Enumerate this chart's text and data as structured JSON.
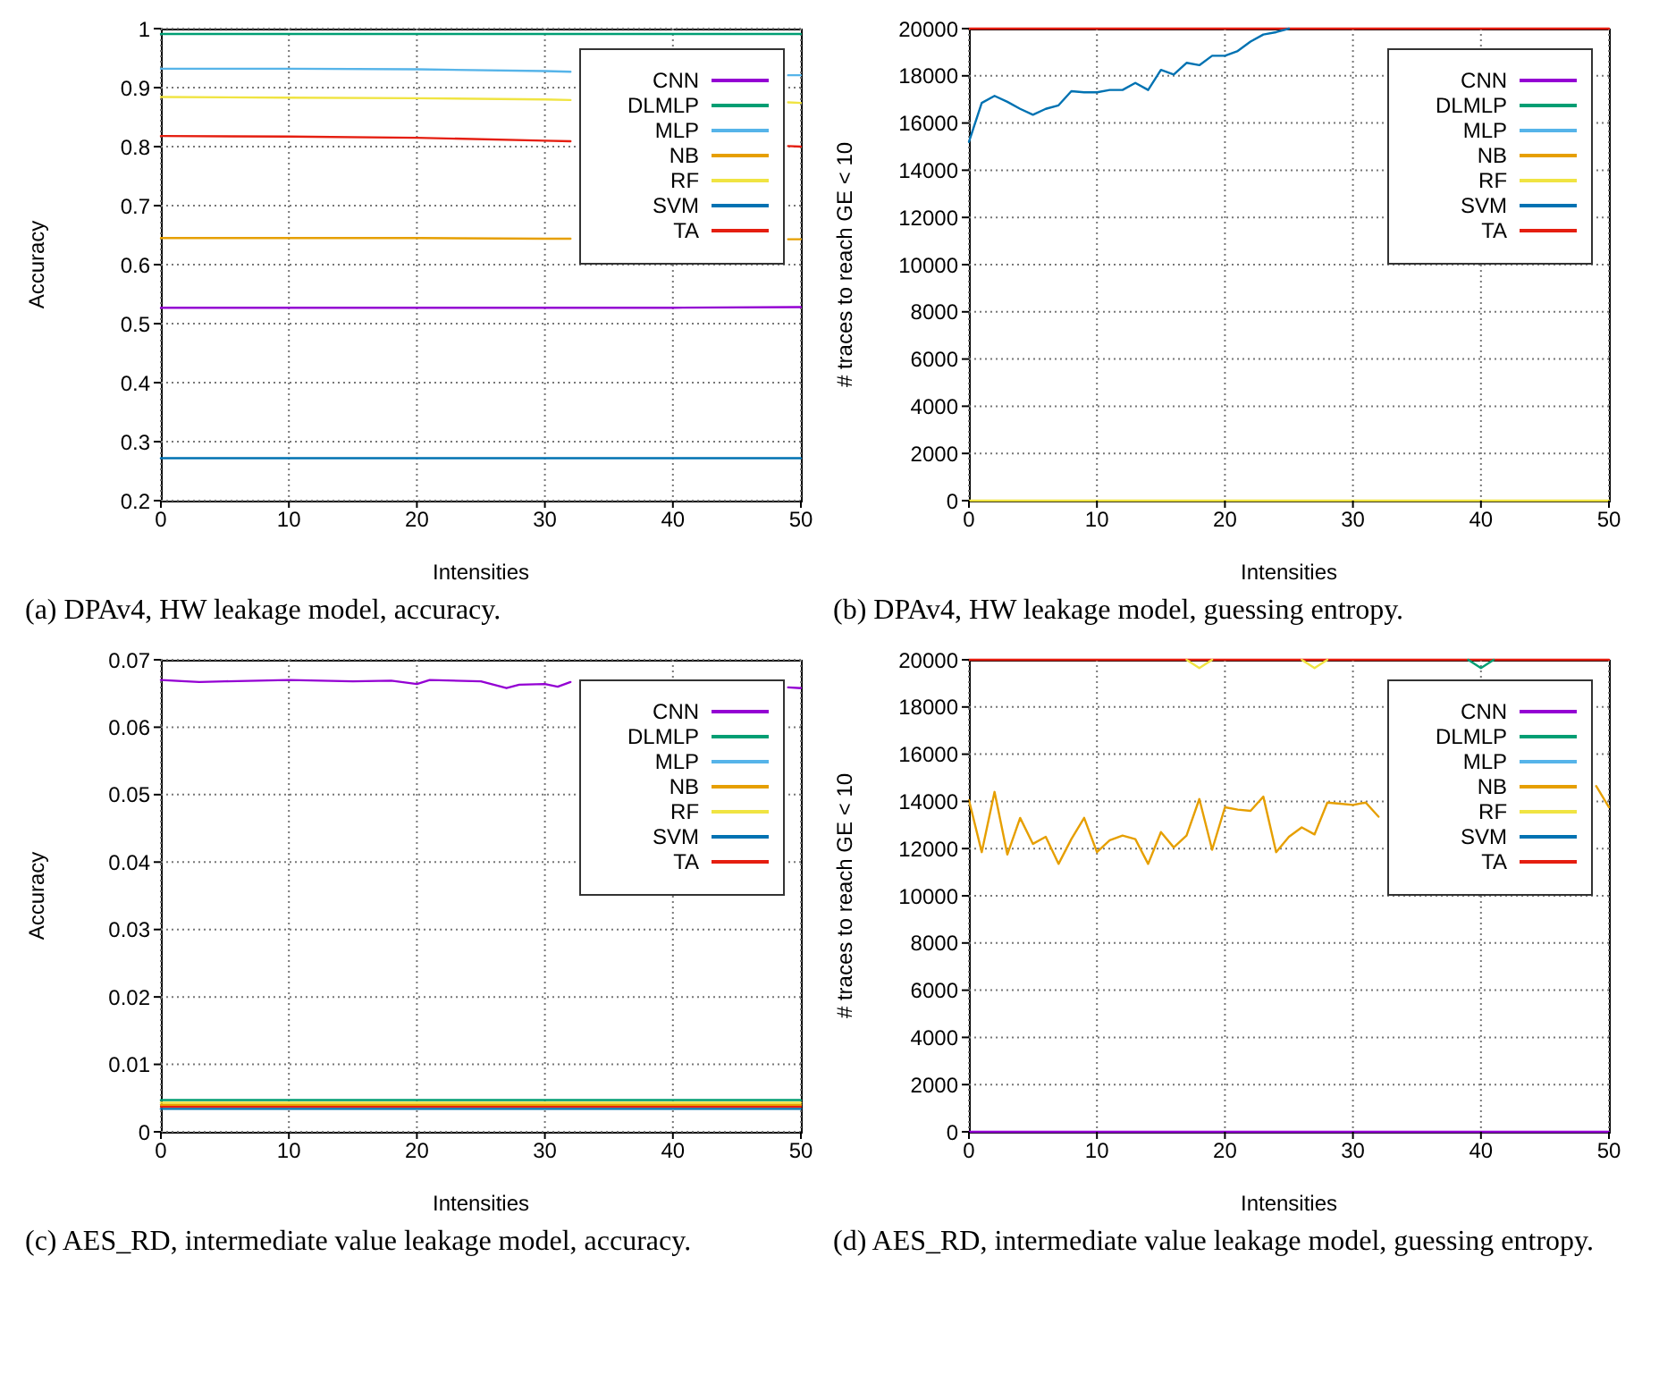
{
  "chart_data": [
    {
      "type": "line",
      "title": "(a) DPAv4, HW leakage model, accuracy.",
      "xlabel": "Intensities",
      "ylabel": "Accuracy",
      "xlim": [
        0,
        50
      ],
      "xticks": [
        0,
        10,
        20,
        30,
        40,
        50
      ],
      "ylim": [
        0.2,
        1
      ],
      "yticks": [
        0.2,
        0.3,
        0.4,
        0.5,
        0.6,
        0.7,
        0.8,
        0.9,
        1
      ],
      "grid": true,
      "legend": "top right",
      "series": [
        {
          "name": "CNN",
          "color": "#9400d3",
          "x": [
            0,
            10,
            20,
            30,
            40,
            50
          ],
          "values": [
            0.527,
            0.527,
            0.527,
            0.527,
            0.527,
            0.528
          ]
        },
        {
          "name": "DLMLP",
          "color": "#009e73",
          "x": [
            0,
            10,
            20,
            30,
            40,
            50
          ],
          "values": [
            0.991,
            0.991,
            0.991,
            0.991,
            0.991,
            0.991
          ]
        },
        {
          "name": "MLP",
          "color": "#56b4e9",
          "x": [
            0,
            10,
            20,
            30,
            32,
            40,
            49,
            50
          ],
          "values": [
            0.932,
            0.932,
            0.931,
            0.928,
            0.927,
            null,
            0.921,
            0.921
          ]
        },
        {
          "name": "NB",
          "color": "#e69f00",
          "x": [
            0,
            10,
            20,
            30,
            32,
            40,
            49,
            50
          ],
          "values": [
            0.645,
            0.645,
            0.645,
            0.644,
            0.644,
            null,
            0.643,
            0.643
          ]
        },
        {
          "name": "RF",
          "color": "#f0e442",
          "x": [
            0,
            10,
            20,
            30,
            32,
            40,
            49,
            50
          ],
          "values": [
            0.884,
            0.883,
            0.882,
            0.88,
            0.879,
            null,
            0.875,
            0.874
          ]
        },
        {
          "name": "SVM",
          "color": "#0072b2",
          "x": [
            0,
            10,
            20,
            30,
            40,
            50
          ],
          "values": [
            0.272,
            0.272,
            0.272,
            0.272,
            0.272,
            0.272
          ]
        },
        {
          "name": "TA",
          "color": "#e51e10",
          "x": [
            0,
            10,
            20,
            30,
            32,
            40,
            49,
            50
          ],
          "values": [
            0.818,
            0.817,
            0.815,
            0.81,
            0.809,
            null,
            0.801,
            0.8
          ]
        }
      ]
    },
    {
      "type": "line",
      "title": "(b) DPAv4, HW leakage model, guessing entropy.",
      "xlabel": "Intensities",
      "ylabel": "# traces to reach GE < 10",
      "xlim": [
        0,
        50
      ],
      "xticks": [
        0,
        10,
        20,
        30,
        40,
        50
      ],
      "ylim": [
        0,
        20000
      ],
      "yticks": [
        0,
        2000,
        4000,
        6000,
        8000,
        10000,
        12000,
        14000,
        16000,
        18000,
        20000
      ],
      "grid": true,
      "legend": "top right",
      "series": [
        {
          "name": "CNN",
          "color": "#9400d3"
        },
        {
          "name": "DLMLP",
          "color": "#009e73"
        },
        {
          "name": "MLP",
          "color": "#56b4e9"
        },
        {
          "name": "NB",
          "color": "#e69f00"
        },
        {
          "name": "RF",
          "color": "#f0e442",
          "x": [
            0,
            50
          ],
          "values": [
            0,
            0
          ]
        },
        {
          "name": "SVM",
          "color": "#0072b2",
          "x": [
            0,
            1,
            2,
            3,
            4,
            5,
            6,
            7,
            8,
            9,
            10,
            11,
            12,
            13,
            14,
            15,
            16,
            17,
            18,
            19,
            20,
            21,
            22,
            23,
            24,
            25
          ],
          "values": [
            15200,
            16850,
            17150,
            16900,
            16600,
            16350,
            16600,
            16750,
            17350,
            17300,
            17300,
            17400,
            17400,
            17700,
            17400,
            18250,
            18050,
            18550,
            18450,
            18850,
            18850,
            19050,
            19450,
            19750,
            19850,
            20000
          ]
        },
        {
          "name": "TA",
          "color": "#e51e10",
          "x": [
            0,
            50
          ],
          "values": [
            20000,
            20000
          ]
        }
      ]
    },
    {
      "type": "line",
      "title": "(c) AES_RD, intermediate value leakage model, accuracy.",
      "xlabel": "Intensities",
      "ylabel": "Accuracy",
      "xlim": [
        0,
        50
      ],
      "xticks": [
        0,
        10,
        20,
        30,
        40,
        50
      ],
      "ylim": [
        0,
        0.07
      ],
      "yticks": [
        0,
        0.01,
        0.02,
        0.03,
        0.04,
        0.05,
        0.06,
        0.07
      ],
      "grid": true,
      "legend": "top right",
      "series": [
        {
          "name": "CNN",
          "color": "#9400d3",
          "x": [
            0,
            3,
            5,
            10,
            15,
            18,
            20,
            21,
            25,
            27,
            28,
            30,
            31,
            32,
            40,
            49,
            50
          ],
          "values": [
            0.067,
            0.0667,
            0.0668,
            0.067,
            0.0668,
            0.0669,
            0.0664,
            0.067,
            0.0668,
            0.0658,
            0.0663,
            0.0664,
            0.066,
            0.0667,
            null,
            0.0659,
            0.0658
          ]
        },
        {
          "name": "DLMLP",
          "color": "#009e73",
          "x": [
            0,
            50
          ],
          "values": [
            0.0047,
            0.0047
          ]
        },
        {
          "name": "MLP",
          "color": "#56b4e9"
        },
        {
          "name": "NB",
          "color": "#e69f00",
          "x": [
            0,
            50
          ],
          "values": [
            0.004,
            0.004
          ]
        },
        {
          "name": "RF",
          "color": "#f0e442",
          "x": [
            0,
            50
          ],
          "values": [
            0.0043,
            0.0043
          ]
        },
        {
          "name": "SVM",
          "color": "#0072b2",
          "x": [
            0,
            50
          ],
          "values": [
            0.0034,
            0.0034
          ]
        },
        {
          "name": "TA",
          "color": "#e51e10",
          "x": [
            0,
            50
          ],
          "values": [
            0.0037,
            0.0037
          ]
        }
      ]
    },
    {
      "type": "line",
      "title": "(d) AES_RD, intermediate value leakage model, guessing entropy.",
      "xlabel": "Intensities",
      "ylabel": "# traces to reach GE < 10",
      "xlim": [
        0,
        50
      ],
      "xticks": [
        0,
        10,
        20,
        30,
        40,
        50
      ],
      "ylim": [
        0,
        20000
      ],
      "yticks": [
        0,
        2000,
        4000,
        6000,
        8000,
        10000,
        12000,
        14000,
        16000,
        18000,
        20000
      ],
      "grid": true,
      "legend": "top right",
      "series": [
        {
          "name": "CNN",
          "color": "#9400d3",
          "x": [
            0,
            50
          ],
          "values": [
            0,
            0
          ]
        },
        {
          "name": "DLMLP",
          "color": "#009e73",
          "x": [
            39,
            40,
            41
          ],
          "values": [
            20000,
            19650,
            20000
          ]
        },
        {
          "name": "MLP",
          "color": "#56b4e9"
        },
        {
          "name": "NB",
          "color": "#e69f00",
          "x": [
            0,
            1,
            2,
            3,
            4,
            5,
            6,
            7,
            8,
            9,
            10,
            11,
            12,
            13,
            14,
            15,
            16,
            17,
            18,
            19,
            20,
            21,
            22,
            23,
            24,
            25,
            26,
            27,
            28,
            29,
            30,
            31,
            32,
            40,
            49,
            50
          ],
          "values": [
            14050,
            11850,
            14400,
            11750,
            13300,
            12200,
            12500,
            11350,
            12400,
            13300,
            11850,
            12350,
            12550,
            12400,
            11350,
            12700,
            12050,
            12550,
            14100,
            11950,
            13750,
            13650,
            13600,
            14200,
            11850,
            12500,
            12900,
            12600,
            13950,
            13900,
            13850,
            13950,
            13350,
            null,
            14650,
            13750
          ]
        },
        {
          "name": "RF",
          "color": "#f0e442",
          "x": [
            17,
            18,
            19,
            22,
            26,
            27,
            28
          ],
          "values": [
            20000,
            19650,
            20000,
            null,
            20000,
            19650,
            20000
          ]
        },
        {
          "name": "SVM",
          "color": "#0072b2"
        },
        {
          "name": "TA",
          "color": "#e51e10",
          "x": [
            0,
            50
          ],
          "values": [
            20000,
            20000
          ]
        }
      ]
    }
  ]
}
